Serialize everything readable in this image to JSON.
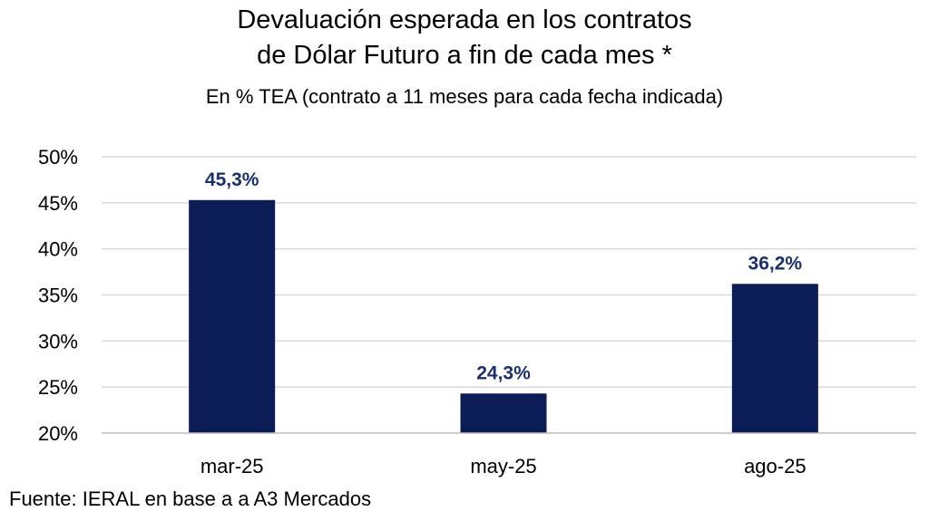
{
  "chart_data": {
    "type": "bar",
    "title_line1": "Devaluación esperada en los contratos",
    "title_line2": "de Dólar Futuro a fin de cada mes *",
    "subtitle": "En % TEA (contrato a 11 meses para cada fecha indicada)",
    "categories": [
      "mar-25",
      "may-25",
      "ago-25"
    ],
    "values": [
      45.3,
      24.3,
      36.2
    ],
    "value_labels": [
      "45,3%",
      "24,3%",
      "36,2%"
    ],
    "ylim": [
      20,
      50
    ],
    "yticks": [
      20,
      25,
      30,
      35,
      40,
      45,
      50
    ],
    "ytick_labels": [
      "20%",
      "25%",
      "30%",
      "35%",
      "40%",
      "45%",
      "50%"
    ],
    "grid": true,
    "bar_color": "#0c1c57",
    "label_color": "#1b2f6e"
  },
  "source": "Fuente: IERAL en base a a A3 Mercados"
}
